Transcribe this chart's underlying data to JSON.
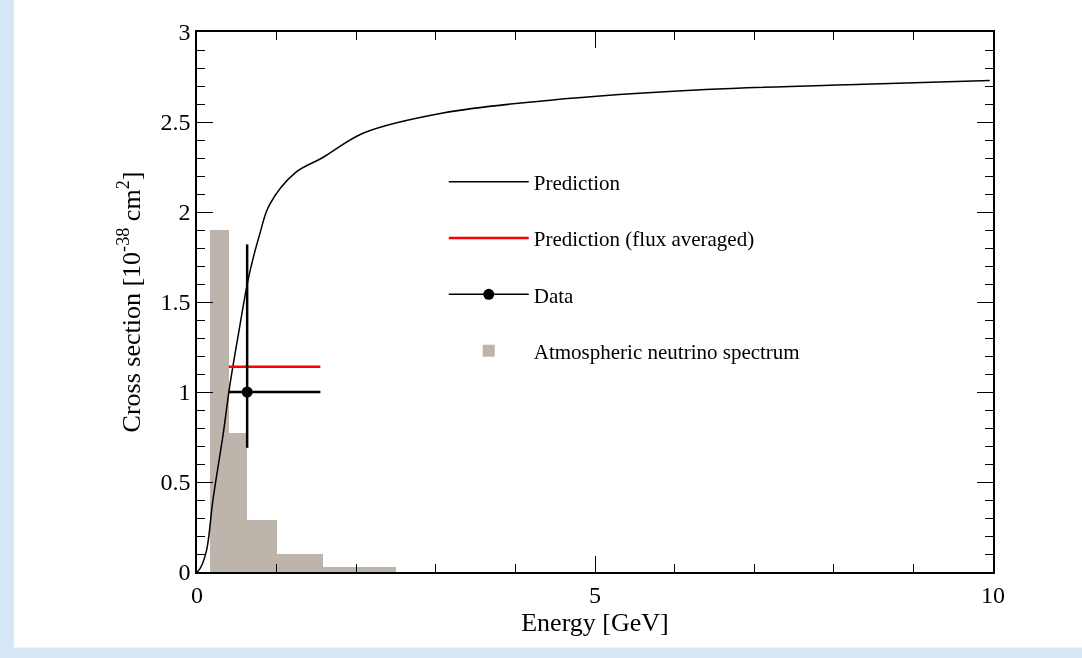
{
  "chart_data": {
    "type": "line",
    "xlabel": "Energy [GeV]",
    "ylabel": "Cross section [10$^{-38}$ cm$^{2}$]",
    "xlim": [
      0,
      10
    ],
    "xticks": [
      0,
      5,
      10
    ],
    "ylim": [
      0,
      3
    ],
    "yticks": [
      0,
      0.5,
      1,
      1.5,
      2,
      2.5,
      3
    ],
    "legend": "top",
    "marker": "none",
    "line_style": "solid",
    "series": [
      {
        "name": "Prediction",
        "color": "#000000",
        "x": [
          0,
          0.04,
          0.12,
          0.2,
          0.33,
          0.41,
          0.52,
          0.65,
          0.79,
          0.91,
          1.24,
          1.57,
          2.1,
          3.09,
          4.41,
          6.39,
          8.38,
          9.96
        ],
        "values": [
          0,
          0.02,
          0.12,
          0.4,
          0.77,
          1.03,
          1.32,
          1.64,
          1.88,
          2.04,
          2.22,
          2.3,
          2.44,
          2.55,
          2.62,
          2.68,
          2.71,
          2.73
        ]
      },
      {
        "name": "Prediction (flux averaged)",
        "type": "line",
        "color": "#ff0000",
        "x": [
          0.4,
          1.55
        ],
        "values": [
          1.14,
          1.14
        ]
      },
      {
        "name": "Data",
        "type": "scatter",
        "color": "#000000",
        "marker": "circle",
        "x": [
          0.63
        ],
        "values": [
          1.0
        ],
        "errors": [
          [
            0.69,
            1.82
          ]
        ],
        "xerrors": [
          [
            0.4,
            1.55
          ]
        ]
      },
      {
        "name": "Atmospheric neutrino spectrum",
        "type": "histogram",
        "color": "#bdb5ab",
        "bins": [
          0.16,
          0.4,
          0.63,
          1.0,
          1.58,
          2.5
        ],
        "values": [
          1.9,
          0.77,
          0.29,
          0.1,
          0.03
        ]
      }
    ]
  }
}
